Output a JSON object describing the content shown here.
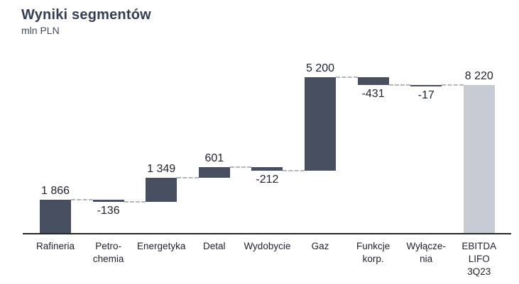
{
  "header": {
    "title": "Wyniki segmentów",
    "subtitle": "mln PLN"
  },
  "chart_data": {
    "type": "bar",
    "subtype": "waterfall",
    "title": "Wyniki segmentów",
    "unit_label": "mln PLN",
    "categories": [
      "Rafineria",
      "Petro-\nchemia",
      "Energetyka",
      "Detal",
      "Wydobycie",
      "Gaz",
      "Funkcje\nkorp.",
      "Wyłącze-\nnia",
      "EBITDA\nLIFO\n3Q23"
    ],
    "values": [
      1866,
      -136,
      1349,
      601,
      -212,
      5200,
      -431,
      -17,
      8220
    ],
    "value_labels": [
      "1 866",
      "-136",
      "1 349",
      "601",
      "-212",
      "5 200",
      "-431",
      "-17",
      "8 220"
    ],
    "bar_kinds": [
      "delta",
      "delta",
      "delta",
      "delta",
      "delta",
      "delta",
      "delta",
      "delta",
      "total"
    ],
    "running_totals": [
      1866,
      1730,
      3079,
      3680,
      3468,
      8668,
      8237,
      8220,
      8220
    ],
    "ylim": [
      0,
      9850
    ],
    "grid": false,
    "legend": false,
    "colors": {
      "delta_bar": "#474e5f",
      "total_bar": "#c7cbd4",
      "connector": "#b3b6bd",
      "axis": "#262626",
      "title": "#333e52",
      "subtitle": "#414b5c",
      "value_text": "#20242e",
      "category_text": "#20242e",
      "background": "#ffffff"
    }
  }
}
